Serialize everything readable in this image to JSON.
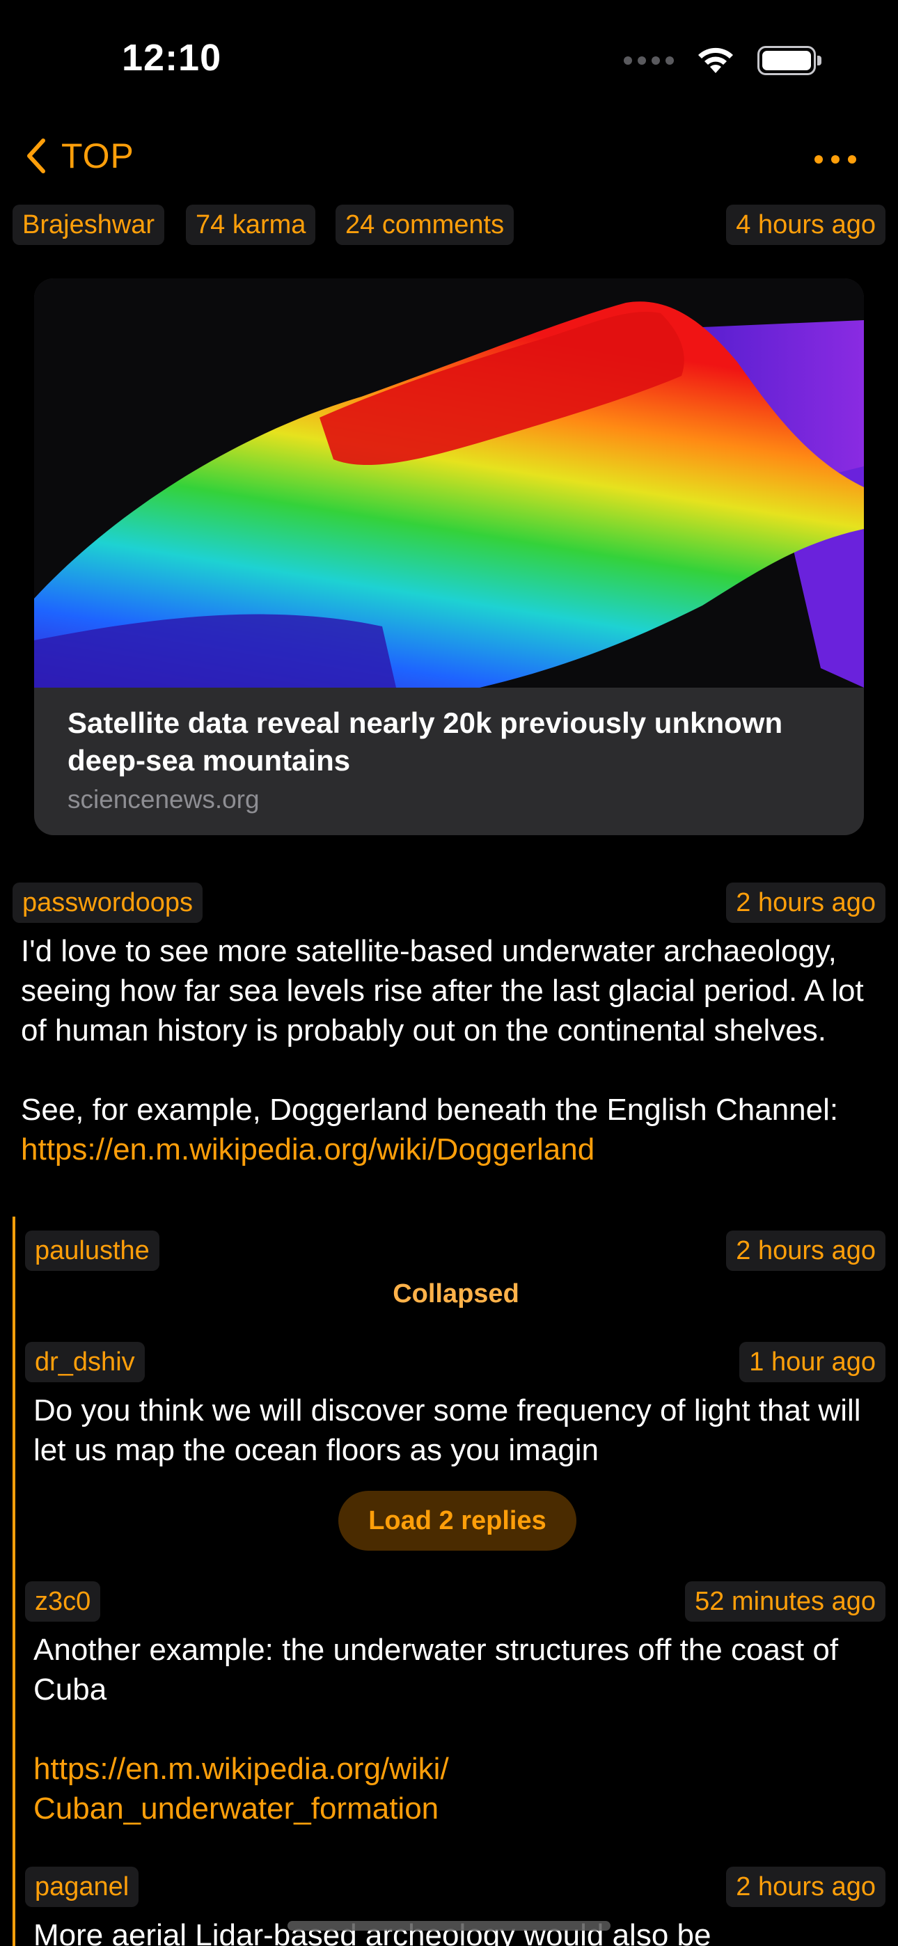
{
  "status_bar": {
    "time": "12:10"
  },
  "nav": {
    "back_label": "TOP"
  },
  "post": {
    "author": "Brajeshwar",
    "karma": "74 karma",
    "comments": "24 comments",
    "age": "4 hours ago",
    "link_title": "Satellite data reveal nearly 20k previously unknown deep-sea mountains",
    "link_domain": "sciencenews.org"
  },
  "comments": [
    {
      "author": "passwordoops",
      "age": "2 hours ago",
      "text": "I'd love to see more satellite-based underwater archaeology, seeing how far sea levels rise after the last glacial period. A lot of human history is probably out on the continental shelves.\n\nSee, for example, Doggerland beneath the English Channel: ",
      "link": "https://en.m.wikipedia.org/wiki/Doggerland"
    },
    {
      "author": "paulusthe",
      "age": "2 hours ago",
      "collapsed_label": "Collapsed"
    },
    {
      "author": "dr_dshiv",
      "age": "1 hour ago",
      "text": "Do you think we will discover some frequency of light that will let us map the ocean floors as you imagin",
      "load_replies_label": "Load 2 replies"
    },
    {
      "author": "z3c0",
      "age": "52 minutes ago",
      "text": "Another example: the underwater structures off the coast of Cuba",
      "link": "https://en.m.wikipedia.org/wiki/\nCuban_underwater_formation"
    },
    {
      "author": "paganel",
      "age": "2 hours ago",
      "text": "More aerial Lidar-based archeology would also be"
    }
  ],
  "icons": {
    "back": "chevron-left-icon",
    "more": "ellipsis-icon",
    "wifi": "wifi-icon",
    "battery": "battery-icon",
    "signal": "cellular-signal-icon"
  },
  "colors": {
    "accent": "#FF9F0A",
    "background": "#000000",
    "chip_background": "#1C1C1E",
    "card_background": "#2C2C2E",
    "load_button_background": "#4A2B00"
  }
}
